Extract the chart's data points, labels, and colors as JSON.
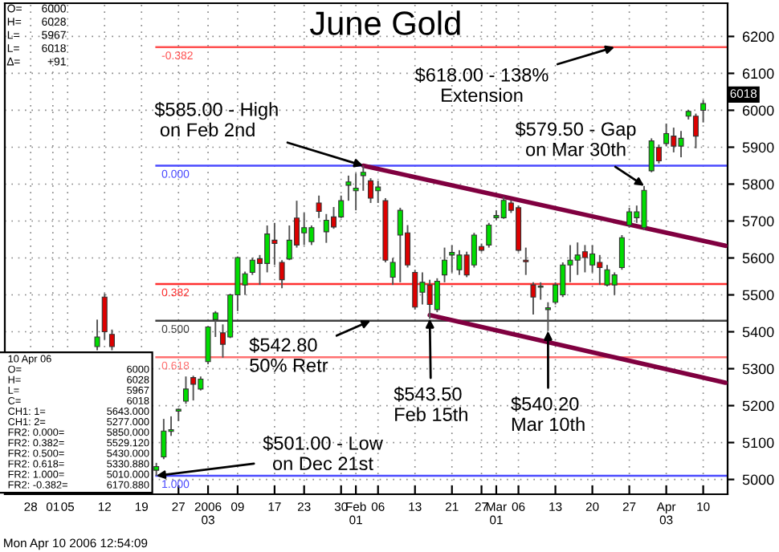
{
  "chart_data": {
    "type": "candlestick",
    "title": "June Gold",
    "categories": [
      null,
      null,
      null,
      "28",
      null,
      null,
      "01",
      null,
      "05",
      null,
      null,
      null,
      null,
      "12",
      null,
      null,
      null,
      null,
      "19",
      null,
      null,
      null,
      null,
      "27",
      null,
      null,
      null,
      "2006\n03",
      null,
      null,
      null,
      "09",
      null,
      null,
      null,
      null,
      "17",
      null,
      null,
      null,
      "23",
      null,
      null,
      null,
      null,
      "30",
      null,
      "Feb\n01",
      null,
      null,
      "06",
      null,
      null,
      null,
      null,
      "13",
      null,
      null,
      null,
      null,
      "21",
      null,
      null,
      null,
      "27",
      null,
      "Mar\n01",
      null,
      null,
      "06",
      null,
      null,
      null,
      null,
      "13",
      null,
      null,
      null,
      null,
      "20",
      null,
      null,
      null,
      null,
      "27",
      null,
      null,
      null,
      null,
      "Apr\n03",
      null,
      null,
      null,
      null,
      "10",
      null,
      null,
      null
    ],
    "ohlc": [
      null,
      null,
      null,
      null,
      null,
      null,
      null,
      null,
      null,
      null,
      null,
      null,
      [
        5360,
        5433,
        5350,
        5386
      ],
      [
        5494,
        5503,
        5379,
        5400
      ],
      [
        5393,
        5406,
        5350,
        5360
      ],
      null,
      null,
      null,
      null,
      null,
      [
        5025,
        5045,
        5010,
        5035
      ],
      [
        5061,
        5164,
        5055,
        5131
      ],
      [
        5130,
        5171,
        5118,
        5135
      ],
      [
        5185,
        5192,
        5158,
        5190
      ],
      [
        5212,
        5279,
        5205,
        5245
      ],
      [
        5276,
        5281,
        5214,
        5258
      ],
      [
        5245,
        5279,
        5241,
        5272
      ],
      [
        5319,
        5415,
        5312,
        5413
      ],
      [
        5433,
        5456,
        5386,
        5451
      ],
      [
        5397,
        5420,
        5330,
        5366
      ],
      [
        5386,
        5503,
        5383,
        5500
      ],
      [
        5500,
        5604,
        5456,
        5601
      ],
      [
        5527,
        5563,
        5500,
        5557
      ],
      [
        5561,
        5601,
        5554,
        5594
      ],
      [
        5598,
        5608,
        5527,
        5585
      ],
      [
        5585,
        5688,
        5561,
        5665
      ],
      [
        5648,
        5695,
        5581,
        5639
      ],
      [
        5588,
        5594,
        5518,
        5541
      ],
      [
        5597,
        5688,
        5594,
        5648
      ],
      [
        5708,
        5755,
        5628,
        5635
      ],
      [
        5668,
        5722,
        5635,
        5682
      ],
      [
        5644,
        5688,
        5635,
        5682
      ],
      [
        5749,
        5769,
        5708,
        5726
      ],
      [
        5671,
        5719,
        5641,
        5702
      ],
      [
        5711,
        5738,
        5679,
        5684
      ],
      [
        5711,
        5769,
        5708,
        5755
      ],
      [
        5797,
        5823,
        5755,
        5806
      ],
      [
        5782,
        5829,
        5729,
        5789
      ],
      [
        5823,
        5850,
        5782,
        5832
      ],
      [
        5809,
        5816,
        5749,
        5762
      ],
      [
        5782,
        5809,
        5749,
        5792
      ],
      [
        5755,
        5762,
        5588,
        5594
      ],
      [
        5548,
        5600,
        5527,
        5588
      ],
      [
        5662,
        5736,
        5534,
        5729
      ],
      [
        5668,
        5689,
        5574,
        5581
      ],
      [
        5561,
        5568,
        5460,
        5467
      ],
      [
        5507,
        5561,
        5474,
        5534
      ],
      [
        5527,
        5541,
        5435,
        5474
      ],
      [
        5460,
        5545,
        5453,
        5537
      ],
      [
        5554,
        5628,
        5534,
        5594
      ],
      [
        5608,
        5635,
        5561,
        5615
      ],
      [
        5568,
        5621,
        5554,
        5608
      ],
      [
        5608,
        5617,
        5548,
        5554
      ],
      [
        5581,
        5668,
        5574,
        5662
      ],
      [
        5631,
        5639,
        5617,
        5621
      ],
      [
        5635,
        5695,
        5628,
        5689
      ],
      [
        5709,
        5729,
        5702,
        5715
      ],
      [
        5709,
        5765,
        5706,
        5756
      ],
      [
        5749,
        5756,
        5722,
        5729
      ],
      [
        5736,
        5742,
        5617,
        5621
      ],
      [
        5594,
        5628,
        5554,
        5590
      ],
      [
        5527,
        5534,
        5447,
        5494
      ],
      [
        5521,
        5534,
        5487,
        5524
      ],
      [
        5460,
        5480,
        5402,
        5465
      ],
      [
        5480,
        5534,
        5474,
        5527
      ],
      [
        5500,
        5588,
        5494,
        5581
      ],
      [
        5581,
        5635,
        5534,
        5594
      ],
      [
        5594,
        5642,
        5554,
        5608
      ],
      [
        5617,
        5635,
        5561,
        5601
      ],
      [
        5581,
        5635,
        5561,
        5611
      ],
      [
        5588,
        5608,
        5527,
        5574
      ],
      [
        5527,
        5581,
        5523,
        5568
      ],
      [
        5527,
        5561,
        5500,
        5554
      ],
      [
        5574,
        5662,
        5568,
        5655
      ],
      [
        5689,
        5736,
        5682,
        5725
      ],
      [
        5709,
        5742,
        5695,
        5725
      ],
      [
        5682,
        5795,
        5675,
        5783
      ],
      [
        5836,
        5924,
        5832,
        5917
      ],
      [
        5899,
        5907,
        5856,
        5863
      ],
      [
        5910,
        5964,
        5903,
        5937
      ],
      [
        5930,
        5953,
        5886,
        5903
      ],
      [
        5903,
        5944,
        5873,
        5924
      ],
      [
        5984,
        6001,
        5975,
        5997
      ],
      [
        5984,
        5991,
        5897,
        5930
      ],
      [
        6000,
        6028,
        5967,
        6018
      ],
      null,
      null,
      null
    ],
    "series": [
      {
        "type": "line",
        "color": "#800040",
        "values": [
          null,
          null,
          null,
          null,
          null,
          null,
          null,
          null,
          null,
          null,
          null,
          null,
          null,
          null,
          null,
          null,
          null,
          null,
          null,
          null,
          null,
          null,
          null,
          null,
          null,
          null,
          null,
          null,
          null,
          null,
          null,
          null,
          null,
          null,
          null,
          null,
          null,
          null,
          null,
          null,
          null,
          null,
          null,
          null,
          null,
          null,
          null,
          null,
          5850,
          null,
          null,
          null,
          null,
          null,
          null,
          null,
          null,
          null,
          null,
          null,
          null,
          null,
          null,
          null,
          null,
          null,
          null,
          null,
          null,
          null,
          null,
          null,
          null,
          null,
          null,
          null,
          null,
          null,
          null,
          null,
          null,
          null,
          null,
          null,
          null,
          null,
          null,
          null,
          null,
          null,
          null,
          null,
          null,
          null,
          null,
          null,
          null,
          5633
        ]
      },
      {
        "type": "line",
        "color": "#800040",
        "values": [
          null,
          null,
          null,
          null,
          null,
          null,
          null,
          null,
          null,
          null,
          null,
          null,
          null,
          null,
          null,
          null,
          null,
          null,
          null,
          null,
          null,
          null,
          null,
          null,
          null,
          null,
          null,
          null,
          null,
          null,
          null,
          null,
          null,
          null,
          null,
          null,
          null,
          null,
          null,
          null,
          null,
          null,
          null,
          null,
          null,
          null,
          null,
          null,
          null,
          null,
          null,
          null,
          null,
          null,
          null,
          null,
          null,
          5445,
          null,
          null,
          null,
          null,
          null,
          null,
          null,
          null,
          null,
          null,
          null,
          null,
          null,
          null,
          null,
          null,
          null,
          null,
          null,
          null,
          null,
          null,
          null,
          null,
          null,
          null,
          null,
          null,
          null,
          null,
          null,
          null,
          null,
          null,
          null,
          null,
          null,
          null,
          null,
          5262
        ]
      }
    ],
    "ylim": [
      4960,
      6290
    ],
    "yticks": [
      5000,
      5100,
      5200,
      5300,
      5400,
      5500,
      5600,
      5700,
      5800,
      5900,
      6000,
      6100,
      6200
    ],
    "grid": true,
    "ref_lines": [
      {
        "axis": "y",
        "value": 6170.88,
        "color": "#ff5050"
      },
      {
        "axis": "y",
        "value": 5850,
        "color": "#4a4aff"
      },
      {
        "axis": "y",
        "value": 5529.12,
        "color": "#ff3030"
      },
      {
        "axis": "y",
        "value": 5430,
        "color": "#404040"
      },
      {
        "axis": "y",
        "value": 5330.88,
        "color": "#ff7070"
      },
      {
        "axis": "y",
        "value": 5010,
        "color": "#4a4aff"
      }
    ],
    "annotations": [
      {
        "text": "$618.00 - 138%\nExtension",
        "y": 6170.88
      },
      {
        "text": "$585.00 - High\n on Feb 2nd",
        "y": 5850
      },
      "$579.50 - Gap\non Mar 30th",
      {
        "text": "$542.80\n50% Retr",
        "y": 5430
      },
      {
        "text": "$543.50\nFeb 15th",
        "y": 5435
      },
      {
        "text": "$540.20\nMar 10th",
        "y": 5402
      },
      {
        "text": "$501.00 - Low\non Dec 21st",
        "y": 5010
      },
      {
        "text": "-0.382",
        "y": 6170.88
      },
      {
        "text": "0.000",
        "y": 5850
      },
      {
        "text": "0.382",
        "y": 5529.12
      },
      {
        "text": "0.500",
        "y": 5430
      },
      {
        "text": "0.618",
        "y": 5330.88
      },
      {
        "text": "1.000",
        "y": 5010
      },
      "O= 6000\nH= 6028\nL= 5967\nL= 6018\n∆= +91",
      "10 Apr 06\nO= 6000\nH= 6028\nL= 5967\nC= 6018\nCH1: 1= 5643.000\nCH1: 2= 5277.000\nFR2: 0.000= 5850.000\nFR2: 0.382= 5529.120\nFR2: 0.500= 5430.000\nFR2: 0.618= 5330.880\nFR2: 1.000= 5010.000\nFR2: -0.382= 6170.880",
      "Mon Apr 10 2006 12:54:09",
      "6018"
    ]
  }
}
